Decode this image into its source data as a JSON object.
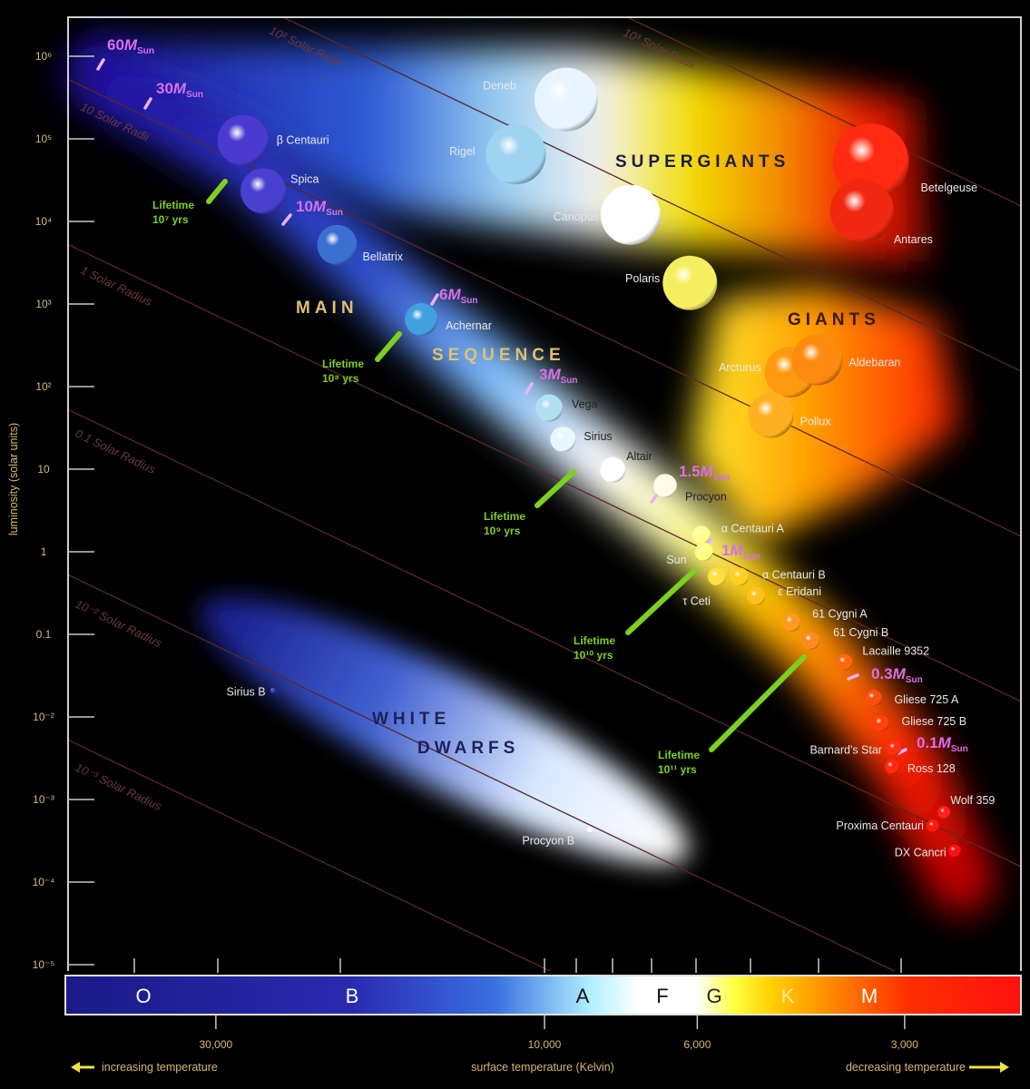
{
  "chart_data": {
    "type": "scatter",
    "title": "",
    "xlabel": "surface temperature (Kelvin)",
    "ylabel": "luminosity (solar units)",
    "x_scale": "log, reversed",
    "y_scale": "log",
    "xlim": [
      50000,
      2000
    ],
    "ylim": [
      1e-05,
      1000000
    ],
    "x_tick_labels": [
      {
        "value": 30000,
        "label": "30,000"
      },
      {
        "value": 10000,
        "label": "10,000"
      },
      {
        "value": 6000,
        "label": "6,000"
      },
      {
        "value": 3000,
        "label": "3,000"
      }
    ],
    "y_tick_labels": [
      {
        "value": 1000000,
        "label": "10⁶"
      },
      {
        "value": 100000,
        "label": "10⁵"
      },
      {
        "value": 10000,
        "label": "10⁴"
      },
      {
        "value": 1000,
        "label": "10³"
      },
      {
        "value": 100,
        "label": "10²"
      },
      {
        "value": 10,
        "label": "10"
      },
      {
        "value": 1,
        "label": "1"
      },
      {
        "value": 0.1,
        "label": "0.1"
      },
      {
        "value": 0.01,
        "label": "10⁻²"
      },
      {
        "value": 0.001,
        "label": "10⁻³"
      },
      {
        "value": 0.0001,
        "label": "10⁻⁴"
      },
      {
        "value": 1e-05,
        "label": "10⁻⁵"
      }
    ],
    "left_caption": "increasing temperature",
    "right_caption": "decreasing temperature",
    "spectral_classes": [
      "O",
      "B",
      "A",
      "F",
      "G",
      "K",
      "M"
    ],
    "regions": {
      "supergiants": "SUPERGIANTS",
      "giants": "GIANTS",
      "main": "MAIN",
      "sequence": "SEQUENCE",
      "white": "WHITE",
      "dwarfs": "DWARFS"
    },
    "radius_lines": [
      {
        "radius": 1000,
        "label": "10³ Solar Radii"
      },
      {
        "radius": 100,
        "label": "10² Solar Radii"
      },
      {
        "radius": 10,
        "label": "10 Solar Radii"
      },
      {
        "radius": 1,
        "label": "1 Solar Radius"
      },
      {
        "radius": 0.1,
        "label": "0.1 Solar Radius"
      },
      {
        "radius": 0.01,
        "label": "10⁻² Solar Radius"
      },
      {
        "radius": 0.001,
        "label": "10⁻³ Solar Radius"
      }
    ],
    "stars": [
      {
        "name": "Deneb",
        "temperature": 9300,
        "luminosity": 300000,
        "color": "#e8f4ff"
      },
      {
        "name": "Rigel",
        "temperature": 11000,
        "luminosity": 65000,
        "color": "#9fd4f0"
      },
      {
        "name": "Canopus",
        "temperature": 7500,
        "luminosity": 12000,
        "color": "#ffffff"
      },
      {
        "name": "Polaris",
        "temperature": 6150,
        "luminosity": 1800,
        "color": "#f5ee60"
      },
      {
        "name": "Betelgeuse",
        "temperature": 3360,
        "luminosity": 53000,
        "color": "#ff2a10"
      },
      {
        "name": "Antares",
        "temperature": 3460,
        "luminosity": 13500,
        "color": "#f02810"
      },
      {
        "name": "Arcturus",
        "temperature": 4400,
        "luminosity": 150,
        "color": "#ff9a10"
      },
      {
        "name": "Aldebaran",
        "temperature": 4020,
        "luminosity": 210,
        "color": "#ff8a10"
      },
      {
        "name": "Pollux",
        "temperature": 4690,
        "luminosity": 45,
        "color": "#ffb020"
      },
      {
        "name": "β Centauri",
        "temperature": 27400,
        "luminosity": 96000,
        "color": "#4a3ad0"
      },
      {
        "name": "Spica",
        "temperature": 25600,
        "luminosity": 23400,
        "color": "#4a40d0"
      },
      {
        "name": "Bellatrix",
        "temperature": 20000,
        "luminosity": 5200,
        "color": "#3a70d0"
      },
      {
        "name": "Achernar",
        "temperature": 15100,
        "luminosity": 650,
        "color": "#40a0e0"
      },
      {
        "name": "Vega",
        "temperature": 9850,
        "luminosity": 55,
        "color": "#b0e0f0"
      },
      {
        "name": "Sirius",
        "temperature": 9400,
        "luminosity": 23,
        "color": "#e8f8ff"
      },
      {
        "name": "Altair",
        "temperature": 7960,
        "luminosity": 9.8,
        "color": "#ffffff"
      },
      {
        "name": "Procyon",
        "temperature": 6680,
        "luminosity": 6.3,
        "color": "#fffbe8"
      },
      {
        "name": "α Centauri A",
        "temperature": 5920,
        "luminosity": 1.6,
        "color": "#ffff90"
      },
      {
        "name": "Sun",
        "temperature": 5870,
        "luminosity": 1.0,
        "color": "#ffff80"
      },
      {
        "name": "τ Ceti",
        "temperature": 5620,
        "luminosity": 0.5,
        "color": "#ffe040"
      },
      {
        "name": "α Centauri B",
        "temperature": 5210,
        "luminosity": 0.5,
        "color": "#ffd020"
      },
      {
        "name": "ε Eridani",
        "temperature": 4930,
        "luminosity": 0.29,
        "color": "#ffc020"
      },
      {
        "name": "61 Cygni A",
        "temperature": 4380,
        "luminosity": 0.14,
        "color": "#ff9a20"
      },
      {
        "name": "61 Cygni B",
        "temperature": 4110,
        "luminosity": 0.084,
        "color": "#ff8a20"
      },
      {
        "name": "Lacaille 9352",
        "temperature": 3670,
        "luminosity": 0.046,
        "color": "#ff6a10"
      },
      {
        "name": "Gliese 725 A",
        "temperature": 3330,
        "luminosity": 0.017,
        "color": "#ff5010"
      },
      {
        "name": "Gliese 725 B",
        "temperature": 3250,
        "luminosity": 0.0084,
        "color": "#ff4010"
      },
      {
        "name": "Barnard's Star",
        "temperature": 3110,
        "luminosity": 0.0042,
        "color": "#ff3010"
      },
      {
        "name": "Ross 128",
        "temperature": 3130,
        "luminosity": 0.0025,
        "color": "#ff2a10"
      },
      {
        "name": "Wolf 359",
        "temperature": 2630,
        "luminosity": 0.0007,
        "color": "#ff2020"
      },
      {
        "name": "Proxima Centauri",
        "temperature": 2730,
        "luminosity": 0.00048,
        "color": "#ff1a10"
      },
      {
        "name": "DX Cancri",
        "temperature": 2540,
        "luminosity": 0.00024,
        "color": "#ff1010"
      },
      {
        "name": "Sirius B",
        "temperature": 24800,
        "luminosity": 0.021,
        "color": "#3040c0"
      },
      {
        "name": "Procyon B",
        "temperature": 8590,
        "luminosity": 0.00043,
        "color": "#ffffff"
      }
    ],
    "mass_markers": [
      {
        "value": "60",
        "symbol": "M",
        "subscript": "Sun"
      },
      {
        "value": "30",
        "symbol": "M",
        "subscript": "Sun"
      },
      {
        "value": "10",
        "symbol": "M",
        "subscript": "Sun"
      },
      {
        "value": "6",
        "symbol": "M",
        "subscript": "Sun"
      },
      {
        "value": "3",
        "symbol": "M",
        "subscript": "Sun"
      },
      {
        "value": "1.5",
        "symbol": "M",
        "subscript": "Sun"
      },
      {
        "value": "1",
        "symbol": "M",
        "subscript": "Sun"
      },
      {
        "value": "0.3",
        "symbol": "M",
        "subscript": "Sun"
      },
      {
        "value": "0.1",
        "symbol": "M",
        "subscript": "Sun"
      }
    ],
    "lifetimes": [
      {
        "label": "Lifetime",
        "value": "10⁷ yrs"
      },
      {
        "label": "Lifetime",
        "value": "10⁸ yrs"
      },
      {
        "label": "Lifetime",
        "value": "10⁹ yrs"
      },
      {
        "label": "Lifetime",
        "value": "10¹⁰ yrs"
      },
      {
        "label": "Lifetime",
        "value": "10¹¹ yrs"
      }
    ],
    "colors": {
      "mass_marker": "#d870e8",
      "lifetime": "#7cd020",
      "radius_line": "#5a2828",
      "axis_text": "#d8b870"
    }
  }
}
